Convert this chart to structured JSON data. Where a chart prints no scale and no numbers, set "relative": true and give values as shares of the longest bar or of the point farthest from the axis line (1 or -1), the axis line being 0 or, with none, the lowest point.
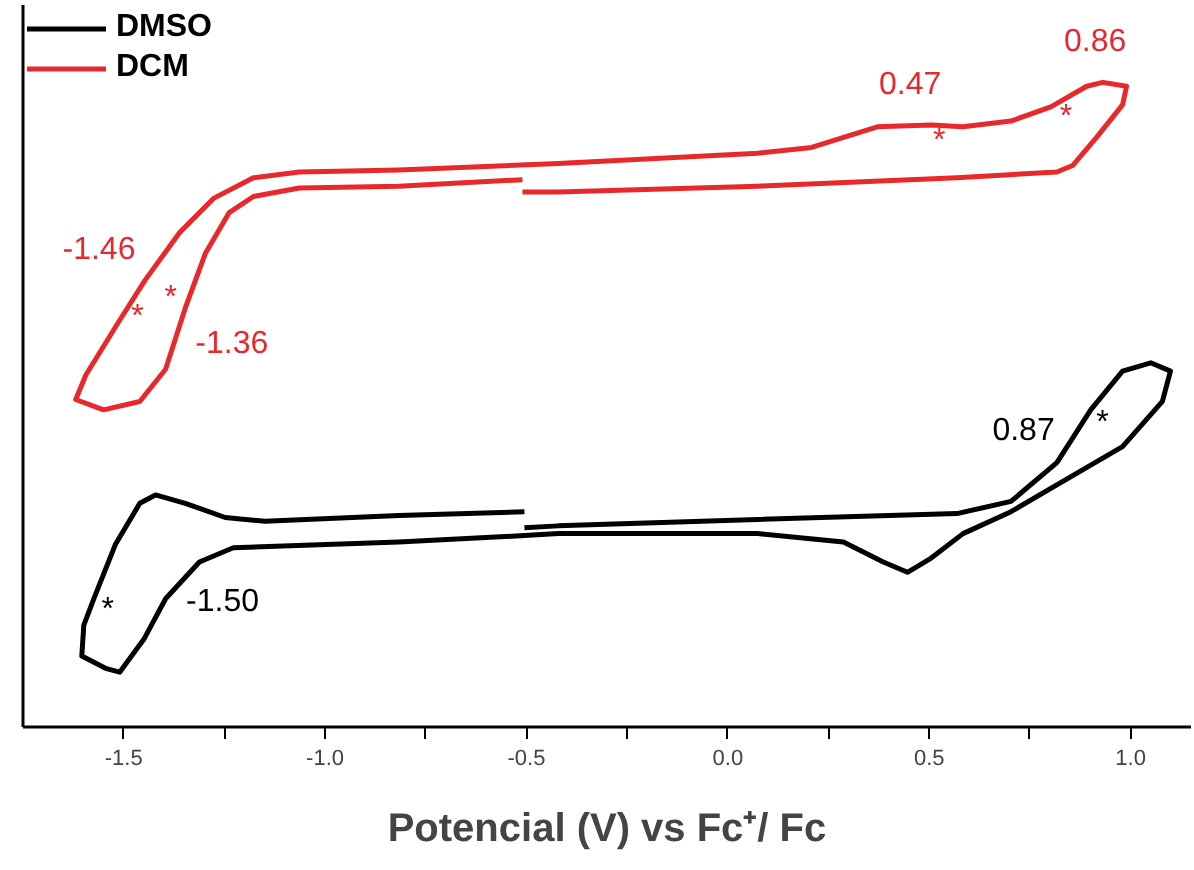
{
  "chart_data": {
    "type": "line",
    "relative": true,
    "xlabel": "Potencial (V) vs Fc⁺/ Fc",
    "xlim": [
      -1.75,
      1.15
    ],
    "xticks": [
      -1.5,
      {
        "value": -1.0,
        "label": "-1.0"
      },
      -0.5,
      {
        "value": 0.0,
        "label": "0.0"
      },
      0.5,
      {
        "value": 1.0,
        "label": "1.0"
      },
      {
        "value": -1.25,
        "label": null
      },
      {
        "value": -0.75,
        "label": null
      },
      {
        "value": -0.25,
        "label": null
      },
      {
        "value": 0.25,
        "label": null
      },
      {
        "value": 0.75,
        "label": null
      }
    ],
    "legend": "top left",
    "grid": false,
    "series": [
      {
        "name": "DMSO",
        "color": "#000000",
        "x": [
          -0.505,
          -0.421,
          0.074,
          0.569,
          0.703,
          0.817,
          0.901,
          0.98,
          1.05,
          1.099,
          1.079,
          0.98,
          0.851,
          0.703,
          0.584,
          0.505,
          0.446,
          0.386,
          0.287,
          0.074,
          -0.421,
          -0.505,
          -0.817,
          -1.228,
          -1.312,
          -1.396,
          -1.45,
          -1.51,
          -1.545,
          -1.604,
          -1.599,
          -1.574,
          -1.52,
          -1.46,
          -1.421,
          -1.347,
          -1.248,
          -1.149,
          -0.817,
          -0.505
        ],
        "values": [
          0.309,
          0.312,
          0.322,
          0.331,
          0.35,
          0.41,
          0.492,
          0.552,
          0.565,
          0.552,
          0.505,
          0.435,
          0.388,
          0.334,
          0.3,
          0.262,
          0.24,
          0.256,
          0.287,
          0.3,
          0.3,
          0.297,
          0.287,
          0.278,
          0.256,
          0.199,
          0.136,
          0.085,
          0.091,
          0.11,
          0.158,
          0.199,
          0.284,
          0.347,
          0.36,
          0.347,
          0.325,
          0.319,
          0.328,
          0.334
        ]
      },
      {
        "name": "DCM",
        "color": "#e8282b",
        "x": [
          -0.51,
          -0.421,
          0.074,
          0.569,
          0.817,
          0.856,
          0.916,
          0.98,
          0.99,
          0.931,
          0.891,
          0.802,
          0.703,
          0.584,
          0.505,
          0.371,
          0.208,
          0.074,
          -0.421,
          -0.817,
          -1.064,
          -1.178,
          -1.277,
          -1.361,
          -1.446,
          -1.51,
          -1.594,
          -1.619,
          -1.55,
          -1.46,
          -1.396,
          -1.347,
          -1.297,
          -1.238,
          -1.178,
          -1.064,
          -0.817,
          -0.51
        ],
        "values": [
          0.83,
          0.83,
          0.839,
          0.852,
          0.861,
          0.871,
          0.915,
          0.965,
          0.994,
          1.0,
          0.994,
          0.962,
          0.94,
          0.931,
          0.934,
          0.931,
          0.899,
          0.89,
          0.874,
          0.864,
          0.861,
          0.852,
          0.82,
          0.767,
          0.694,
          0.631,
          0.546,
          0.508,
          0.492,
          0.505,
          0.555,
          0.65,
          0.735,
          0.798,
          0.823,
          0.836,
          0.839,
          0.849
        ]
      }
    ],
    "annotations": [
      {
        "text": "0.47",
        "x": 0.505,
        "y": 0.934
      },
      {
        "text": "0.86",
        "x": 0.891,
        "y": 0.994
      },
      {
        "text": "-1.46",
        "x": -1.446,
        "y": 0.694
      },
      {
        "text": "-1.36",
        "x": -1.347,
        "y": 0.65
      },
      {
        "text": "*",
        "x": 0.505,
        "y": 0.934
      },
      {
        "text": "*",
        "x": 0.802,
        "y": 0.962
      },
      {
        "text": "*",
        "x": -1.347,
        "y": 0.65
      },
      {
        "text": "*",
        "x": -1.51,
        "y": 0.631
      },
      {
        "text": "0.87",
        "x": 0.817,
        "y": 0.41
      },
      {
        "text": "-1.50",
        "x": -1.396,
        "y": 0.199
      },
      {
        "text": "*",
        "x": 0.901,
        "y": 0.492
      },
      {
        "text": "*",
        "x": -1.574,
        "y": 0.199
      }
    ]
  }
}
